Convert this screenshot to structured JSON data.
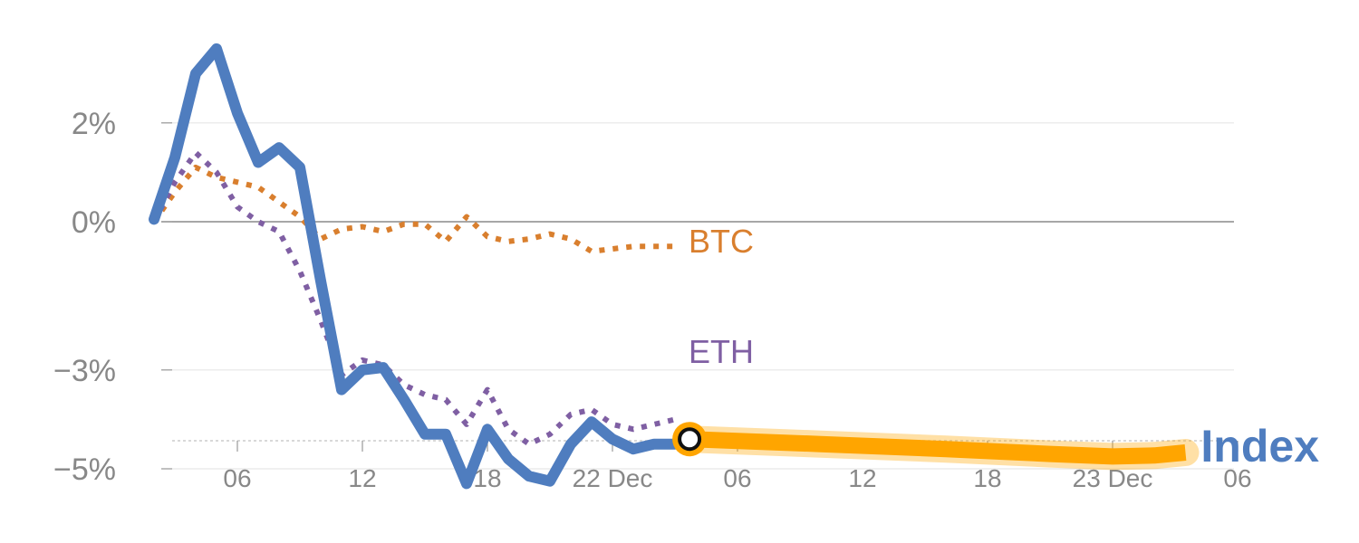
{
  "chart_data": {
    "type": "line",
    "y_unit": "%",
    "ylim": [
      -5.5,
      4.2
    ],
    "y_ticks": [
      {
        "value": 2,
        "label": "2%"
      },
      {
        "value": 0,
        "label": "0%"
      },
      {
        "value": -3,
        "label": "−3%"
      },
      {
        "value": -5,
        "label": "−5%"
      }
    ],
    "x_unit": "hours",
    "xlim": [
      -2.5,
      48
    ],
    "x_ticks": [
      {
        "value": 2,
        "label": "06"
      },
      {
        "value": 8,
        "label": "12"
      },
      {
        "value": 14,
        "label": "18"
      },
      {
        "value": 20,
        "label": "22 Dec"
      },
      {
        "value": 26,
        "label": "06"
      },
      {
        "value": 32,
        "label": "12"
      },
      {
        "value": 38,
        "label": "18"
      },
      {
        "value": 44,
        "label": "23 Dec"
      },
      {
        "value": 50,
        "label": "06"
      }
    ],
    "grid": true,
    "series": [
      {
        "name": "Index",
        "color": "#4f7dbf",
        "style": "solid",
        "label": "Index",
        "x": [
          -2,
          -1,
          0,
          1,
          2,
          3,
          4,
          5,
          6,
          7,
          8,
          9,
          10,
          11,
          12,
          13,
          14,
          15,
          16,
          17,
          18,
          19,
          20,
          21,
          22,
          23,
          23.7
        ],
        "values": [
          0.05,
          1.3,
          3.0,
          3.5,
          2.2,
          1.2,
          1.5,
          1.1,
          -1.2,
          -3.4,
          -3.0,
          -2.95,
          -3.6,
          -4.3,
          -4.3,
          -5.3,
          -4.2,
          -4.8,
          -5.15,
          -5.25,
          -4.5,
          -4.05,
          -4.4,
          -4.6,
          -4.5,
          -4.5,
          -4.4
        ]
      },
      {
        "name": "ETH",
        "color": "#7f5fa3",
        "style": "dotted",
        "label": "ETH",
        "x": [
          -2,
          -1,
          0,
          1,
          2,
          3,
          4,
          5,
          6,
          7,
          8,
          9,
          10,
          11,
          12,
          13,
          14,
          15,
          16,
          17,
          18,
          19,
          20,
          21,
          22,
          23
        ],
        "values": [
          0.0,
          0.8,
          1.4,
          1.0,
          0.3,
          0.0,
          -0.2,
          -1.0,
          -2.0,
          -3.1,
          -2.8,
          -2.9,
          -3.3,
          -3.5,
          -3.6,
          -4.1,
          -3.4,
          -4.2,
          -4.5,
          -4.3,
          -3.9,
          -3.8,
          -4.1,
          -4.2,
          -4.1,
          -4.0
        ]
      },
      {
        "name": "BTC",
        "color": "#d97f2e",
        "style": "dotted",
        "label": "BTC",
        "x": [
          -2,
          -1,
          0,
          1,
          2,
          3,
          4,
          5,
          6,
          7,
          8,
          9,
          10,
          11,
          12,
          13,
          14,
          15,
          16,
          17,
          18,
          19,
          20,
          21,
          22,
          23
        ],
        "values": [
          0.0,
          0.6,
          1.1,
          0.9,
          0.8,
          0.7,
          0.4,
          0.1,
          -0.35,
          -0.15,
          -0.1,
          -0.2,
          -0.05,
          -0.05,
          -0.4,
          0.1,
          -0.3,
          -0.4,
          -0.35,
          -0.25,
          -0.35,
          -0.6,
          -0.55,
          -0.5,
          -0.5,
          -0.5
        ]
      }
    ],
    "forecast": {
      "color": "#ffa500",
      "x": [
        23.7,
        30,
        36,
        41,
        44,
        46,
        47.5
      ],
      "values": [
        -4.4,
        -4.5,
        -4.6,
        -4.7,
        -4.75,
        -4.73,
        -4.67
      ]
    },
    "current_marker": {
      "x": 23.7,
      "value": -4.4
    }
  }
}
